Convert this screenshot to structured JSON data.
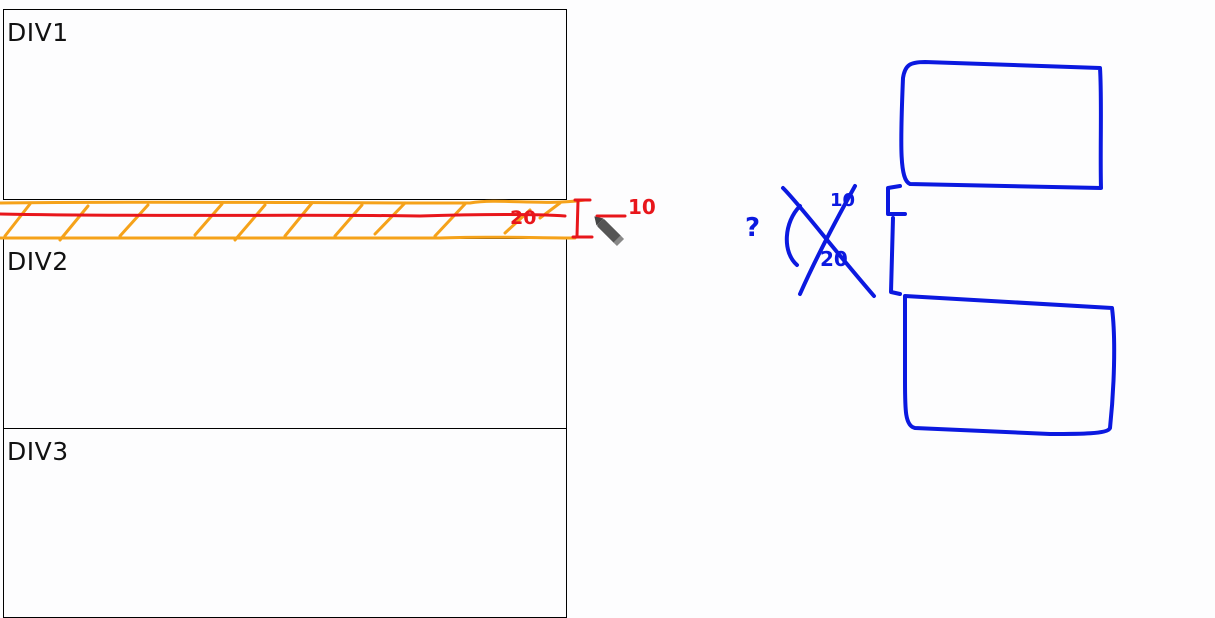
{
  "boxes": [
    {
      "label": "DIV1"
    },
    {
      "label": "DIV2"
    },
    {
      "label": "DIV3"
    }
  ],
  "annotations": {
    "red_gap_large": "20",
    "red_gap_small": "10",
    "blue_question": "?",
    "blue_crossed_small": "10",
    "blue_crossed_large": "20"
  },
  "colors": {
    "red": "#e8161b",
    "orange": "#f5a21a",
    "blue": "#0b19e0"
  },
  "icons": [
    "pen-cursor-icon"
  ]
}
